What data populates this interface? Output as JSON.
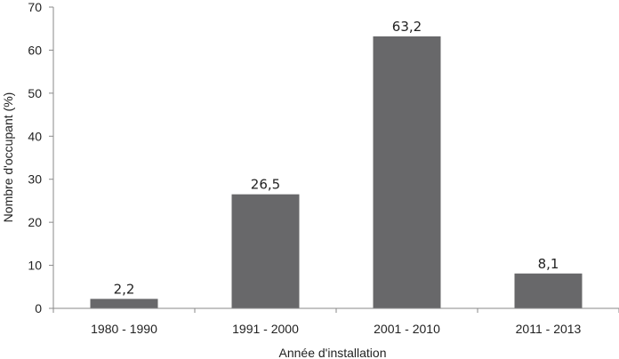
{
  "chart_data": {
    "type": "bar",
    "categories": [
      "1980 - 1990",
      "1991 - 2000",
      "2001 - 2010",
      "2011 - 2013"
    ],
    "values": [
      2.2,
      26.5,
      63.2,
      8.1
    ],
    "data_labels": [
      "2,2",
      "26,5",
      "63,2",
      "8,1"
    ],
    "xlabel": "Année d'installation",
    "ylabel": "Nombre d'occupant (%)",
    "ylim": [
      0,
      70
    ],
    "yticks": [
      0,
      10,
      20,
      30,
      40,
      50,
      60,
      70
    ],
    "grid": false,
    "legend": "none",
    "colors": {
      "bar": "#68686a",
      "axis": "#8a8a8a"
    }
  }
}
